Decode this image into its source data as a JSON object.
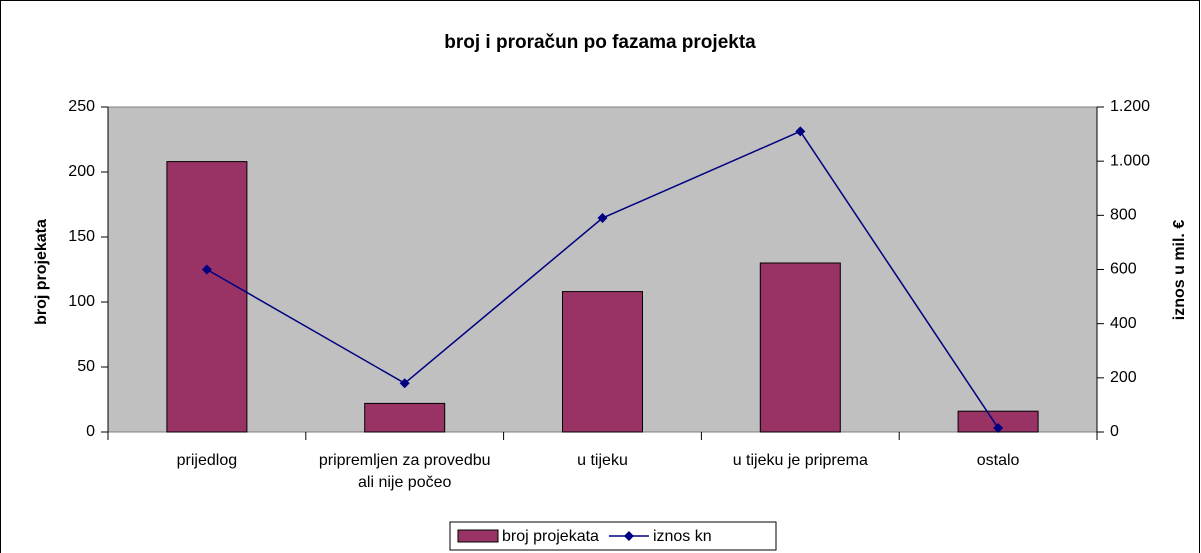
{
  "chart_data": {
    "type": "bar",
    "title": "broj i proračun po fazama projekta",
    "categories": [
      "prijedlog",
      "pripremljen za provedbu\nali nije počeo",
      "u tijeku",
      "u tijeku je priprema",
      "ostalo"
    ],
    "y_label": "broj projekata",
    "y2_label": "iznos u  mil. €",
    "series": [
      {
        "name": "broj projekata",
        "type": "bar",
        "color": "#993366",
        "values": [
          208,
          22,
          108,
          130,
          16
        ]
      },
      {
        "name": "iznos kn",
        "type": "line",
        "axis": "y2",
        "color": "#000080",
        "values": [
          600,
          180,
          790,
          1110,
          15
        ]
      }
    ],
    "ylim": [
      0,
      250
    ],
    "yticks": [
      0,
      50,
      100,
      150,
      200,
      250
    ],
    "y2lim": [
      0,
      1200
    ],
    "y2ticks": [
      0,
      200,
      400,
      600,
      800,
      {
        "value": 1000,
        "label": "1.000"
      },
      {
        "value": 1200,
        "label": "1.200"
      }
    ],
    "plot_background": "#c0c0c0",
    "legend": "bottom"
  }
}
